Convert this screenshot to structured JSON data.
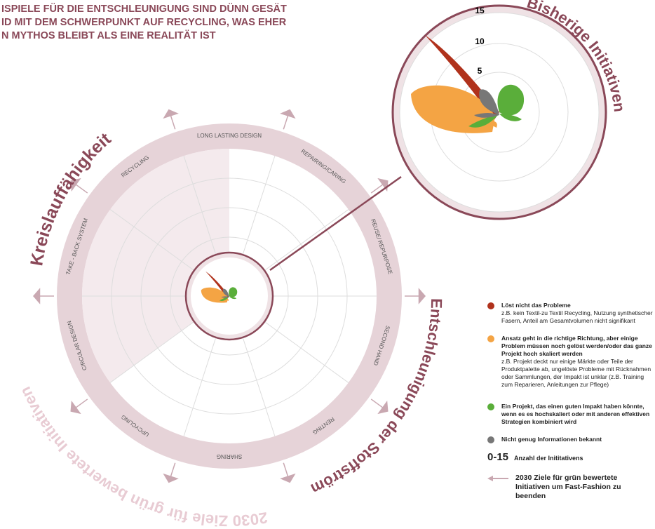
{
  "title_lines": [
    "ISPIELE FÜR DIE ENTSCHLEUNIGUNG SIND DÜNN GESÄT",
    "ID MIT DEM SCHWERPUNKT AUF RECYCLING, WAS EHER",
    "N MYTHOS BLEIBT ALS EINE REALITÄT IST"
  ],
  "sectors": [
    "LONG LASTING DESIGN",
    "REPAIRING/CARING",
    "REUSE/ REPURPOSE",
    "SECOND HAND",
    "RENTING",
    "SHARING",
    "UPCYCLING",
    "CIRCULAR DESIGN",
    "TAKE - BACK SYSTEM",
    "RECYCLING"
  ],
  "side_labels": {
    "circularity": "Kreislauffähigkeit",
    "deceleration": "Entschleunigung der Stoffströme",
    "goals": "2030 Ziele für grün bewertete Initiativen",
    "existing": "Bisherige Initiativen"
  },
  "scale_labels": [
    "15",
    "10",
    "5"
  ],
  "legend": [
    {
      "title": "Löst nicht das Probleme",
      "text": "z.B. kein Textil-zu Textil Recycling, Nutzung synthetischer Fasern, Anteil am Gesamtvolumen nicht signifikant"
    },
    {
      "title": "Ansatz geht in die richtige Richtung, aber einige Problem müssen noch gelöst werden/oder das ganze Projekt hoch skaliert werden",
      "text": "z.B. Projekt deckt nur einige Märkte oder Teile der Produktpalette ab, ungelöste Probleme mit Rücknahmen oder Sammlungen, der Impakt ist unklar  (z.B. Training zum Reparieren, Anleitungen zur Pflege)"
    },
    {
      "title": "Ein Projekt, das einen guten Impakt haben könnte, wenn es es hochskaliert oder mit anderen effektiven Strategien kombiniert wird"
    },
    {
      "title": "Nicht genug Informationen bekannt"
    }
  ],
  "legend_count": {
    "key": "0-15",
    "text": "Anzahl der Inititativens"
  },
  "legend_goal": "2030 Ziele für grün bewertete Initiativen um Fast-Fashion zu beenden"
}
